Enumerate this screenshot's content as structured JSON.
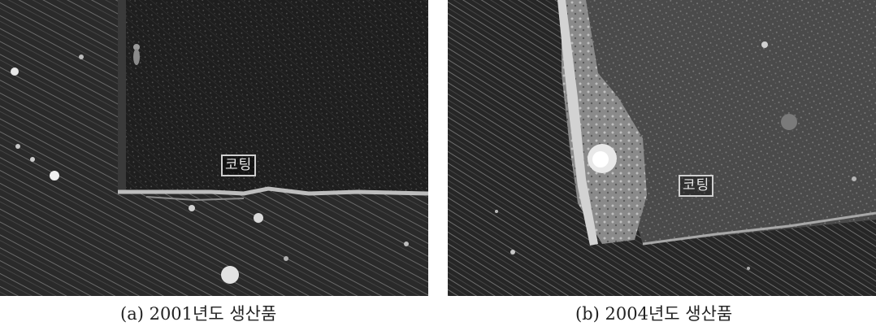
{
  "figures": [
    {
      "id": "a",
      "image_label": "코팅",
      "caption": "(a) 2001년도 생산품"
    },
    {
      "id": "b",
      "image_label": "코팅",
      "caption": "(b) 2004년도 생산품"
    }
  ],
  "colors": {
    "background": "#ffffff",
    "photo_dark": "#1a1a1a",
    "caption_text": "#222222"
  }
}
